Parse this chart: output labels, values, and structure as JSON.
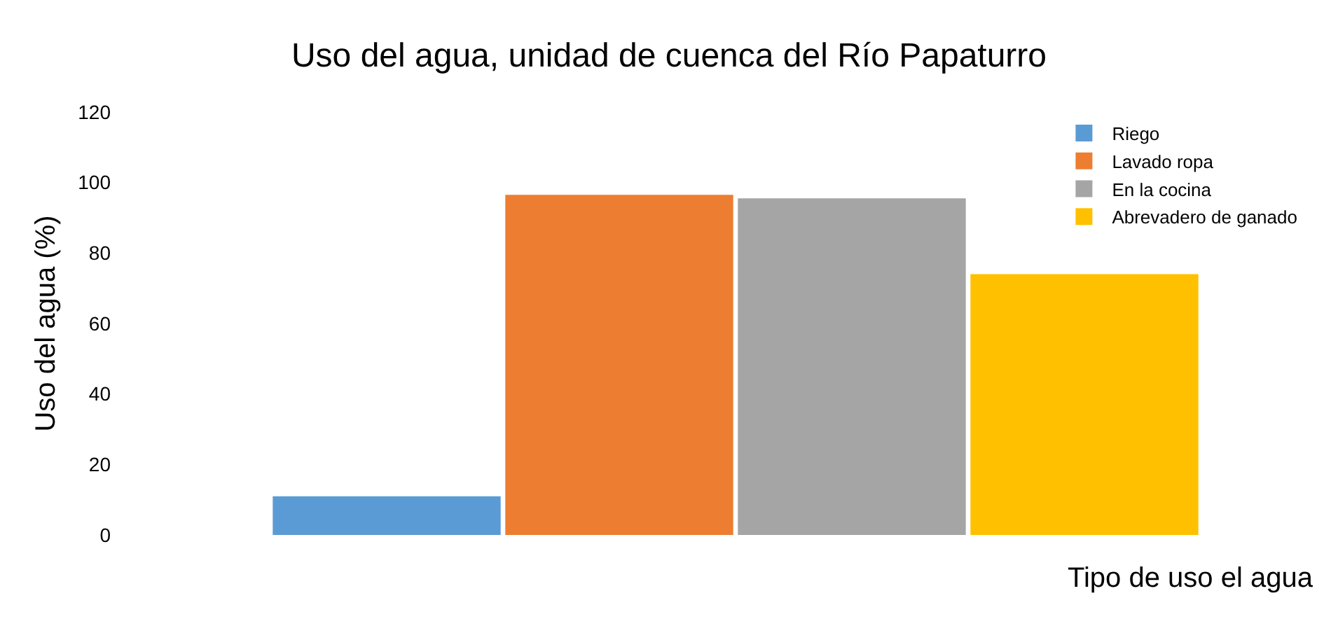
{
  "chart_data": {
    "type": "bar",
    "title": "Uso del agua, unidad de cuenca del Río Papaturro",
    "xlabel": "Tipo de uso el agua",
    "ylabel": "Uso del agua (%)",
    "categories": [
      null
    ],
    "series": [
      {
        "name": "Riego",
        "color": "#5b9bd5",
        "values": [
          11
        ]
      },
      {
        "name": "Lavado ropa",
        "color": "#ed7d31",
        "values": [
          96.5
        ]
      },
      {
        "name": "En la cocina",
        "color": "#a5a5a5",
        "values": [
          95.5
        ]
      },
      {
        "name": "Abrevadero de ganado",
        "color": "#ffc000",
        "values": [
          74
        ]
      }
    ],
    "ylim": [
      0,
      120
    ],
    "yticks": [
      0,
      20,
      40,
      60,
      80,
      100,
      120
    ],
    "grid": false,
    "legend": "top right"
  }
}
